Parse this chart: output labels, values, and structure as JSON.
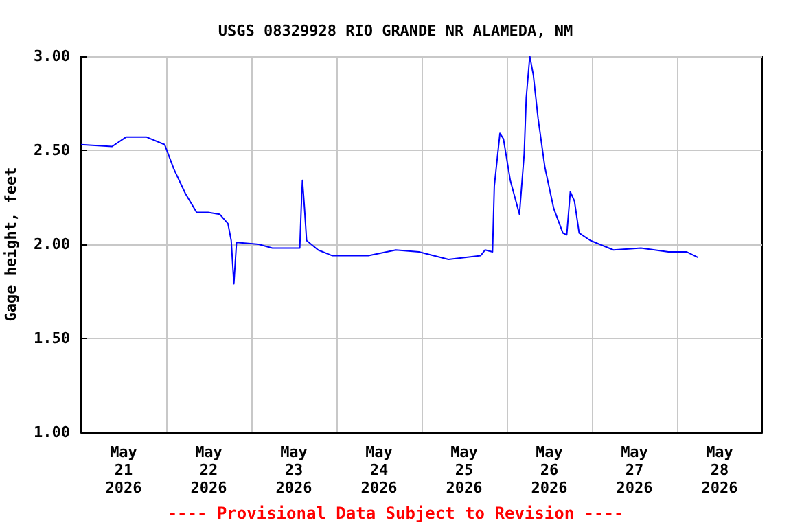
{
  "chart_data": {
    "type": "line",
    "title": "USGS 08329928 RIO GRANDE NR ALAMEDA, NM",
    "ylabel": "Gage height, feet",
    "annotations": [
      "---- Provisional Data Subject to Revision ----"
    ],
    "x": [
      "2026-05-21T00:00",
      "2026-05-21T08:45",
      "2026-05-21T12:40",
      "2026-05-21T18:30",
      "2026-05-21T23:35",
      "2026-05-22T02:10",
      "2026-05-22T05:25",
      "2026-05-22T08:35",
      "2026-05-22T11:50",
      "2026-05-22T15:05",
      "2026-05-22T17:25",
      "2026-05-22T18:20",
      "2026-05-22T19:05",
      "2026-05-22T19:50",
      "2026-05-23T02:05",
      "2026-05-23T05:55",
      "2026-05-23T13:40",
      "2026-05-23T14:05",
      "2026-05-23T14:25",
      "2026-05-23T15:00",
      "2026-05-23T15:35",
      "2026-05-23T18:50",
      "2026-05-23T22:45",
      "2026-05-24T09:00",
      "2026-05-24T16:45",
      "2026-05-24T23:15",
      "2026-05-25T07:35",
      "2026-05-25T16:40",
      "2026-05-25T17:55",
      "2026-05-25T20:00",
      "2026-05-25T20:30",
      "2026-05-25T22:05",
      "2026-05-25T23:05",
      "2026-05-26T01:00",
      "2026-05-26T03:35",
      "2026-05-26T04:55",
      "2026-05-26T05:30",
      "2026-05-26T06:30",
      "2026-05-26T07:30",
      "2026-05-26T08:50",
      "2026-05-26T10:45",
      "2026-05-26T13:15",
      "2026-05-26T15:50",
      "2026-05-26T16:55",
      "2026-05-26T17:55",
      "2026-05-26T19:05",
      "2026-05-26T20:25",
      "2026-05-26T23:35",
      "2026-05-27T06:05",
      "2026-05-27T13:50",
      "2026-05-27T21:35",
      "2026-05-28T02:40",
      "2026-05-28T05:55"
    ],
    "series": [
      {
        "color": "#0000ff",
        "values": [
          2.53,
          2.52,
          2.57,
          2.57,
          2.53,
          2.4,
          2.27,
          2.17,
          2.17,
          2.16,
          2.11,
          2.02,
          1.79,
          2.01,
          2.0,
          1.98,
          1.98,
          2.2,
          2.34,
          2.19,
          2.02,
          1.97,
          1.94,
          1.94,
          1.97,
          1.96,
          1.92,
          1.94,
          1.97,
          1.96,
          2.31,
          2.59,
          2.56,
          2.34,
          2.16,
          2.48,
          2.78,
          3.0,
          2.9,
          2.67,
          2.41,
          2.19,
          2.06,
          2.05,
          2.28,
          2.23,
          2.06,
          2.02,
          1.97,
          1.98,
          1.96,
          1.96,
          1.93
        ]
      }
    ],
    "xlim": [
      "2026-05-21T00:00",
      "2026-05-29T00:00"
    ],
    "xticks": [
      {
        "value": "2026-05-21T12:00",
        "label": "May\n21\n2026"
      },
      {
        "value": "2026-05-22T12:00",
        "label": "May\n22\n2026"
      },
      {
        "value": "2026-05-23T12:00",
        "label": "May\n23\n2026"
      },
      {
        "value": "2026-05-24T12:00",
        "label": "May\n24\n2026"
      },
      {
        "value": "2026-05-25T12:00",
        "label": "May\n25\n2026"
      },
      {
        "value": "2026-05-26T12:00",
        "label": "May\n26\n2026"
      },
      {
        "value": "2026-05-27T12:00",
        "label": "May\n27\n2026"
      },
      {
        "value": "2026-05-28T12:00",
        "label": "May\n28\n2026"
      },
      {
        "value": "2026-05-22T00:00",
        "label": null
      },
      {
        "value": "2026-05-23T00:00",
        "label": null
      },
      {
        "value": "2026-05-24T00:00",
        "label": null
      },
      {
        "value": "2026-05-25T00:00",
        "label": null
      },
      {
        "value": "2026-05-26T00:00",
        "label": null
      },
      {
        "value": "2026-05-27T00:00",
        "label": null
      },
      {
        "value": "2026-05-28T00:00",
        "label": null
      }
    ],
    "ylim": [
      1.0,
      3.0
    ],
    "yticks": [
      {
        "value": 1.0,
        "label": "1.00"
      },
      {
        "value": 1.5,
        "label": "1.50"
      },
      {
        "value": 2.0,
        "label": "2.00"
      },
      {
        "value": 2.5,
        "label": "2.50"
      },
      {
        "value": 3.0,
        "label": "3.00"
      }
    ],
    "grid": true,
    "marker": "none",
    "line_style": "solid"
  }
}
